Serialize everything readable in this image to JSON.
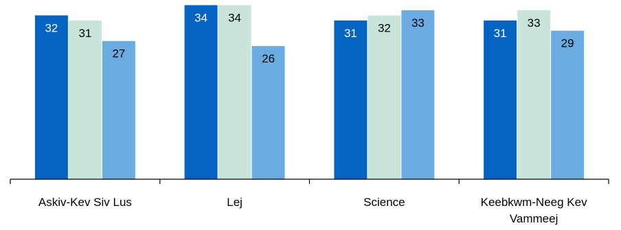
{
  "chart_data": {
    "type": "bar",
    "title": "",
    "xlabel": "",
    "ylabel": "",
    "ylim": [
      0,
      35
    ],
    "grid": false,
    "legend": "none",
    "categories": [
      [
        "Askiv-Kev Siv Lus"
      ],
      [
        "Lej"
      ],
      [
        "Science"
      ],
      [
        "Keebkwm-Neeg Kev",
        "Vammeej"
      ]
    ],
    "series": [
      {
        "color": "#0563C1",
        "label_color": "#ffffff",
        "values": [
          32,
          34,
          31,
          31
        ]
      },
      {
        "color": "#C9E4D8",
        "label_color": "#000000",
        "values": [
          31,
          34,
          32,
          33
        ]
      },
      {
        "color": "#6AACE2",
        "label_color": "#000000",
        "values": [
          27,
          26,
          33,
          29
        ]
      }
    ]
  }
}
